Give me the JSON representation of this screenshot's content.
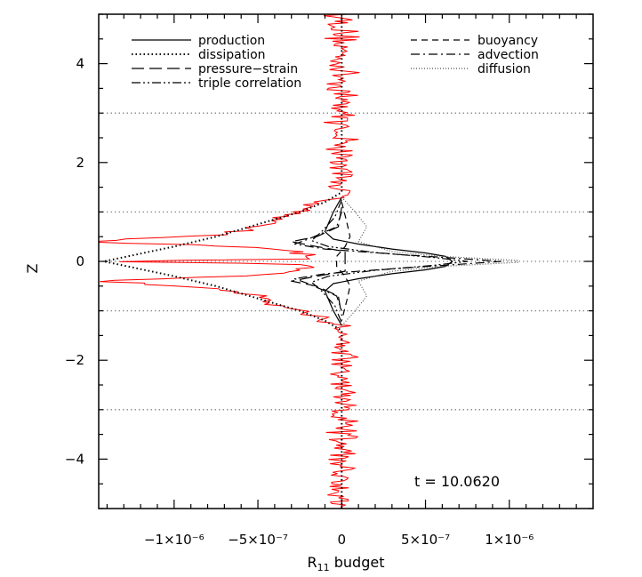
{
  "chart_data": {
    "type": "line",
    "title": "",
    "xlabel_main": "R",
    "xlabel_sub": "11",
    "xlabel_rest": " budget",
    "ylabel": "Z",
    "xlim": [
      -1.45e-06,
      1.5e-06
    ],
    "ylim": [
      -5,
      5
    ],
    "x_ticks": [
      {
        "value": -1e-06,
        "label": "−1×10⁻⁶"
      },
      {
        "value": -5e-07,
        "label": "−5×10⁻⁷"
      },
      {
        "value": 0,
        "label": "0"
      },
      {
        "value": 5e-07,
        "label": "5×10⁻⁷"
      },
      {
        "value": 1e-06,
        "label": "1×10⁻⁶"
      }
    ],
    "y_ticks": [
      {
        "value": -4,
        "label": "−4"
      },
      {
        "value": -2,
        "label": "−2"
      },
      {
        "value": 0,
        "label": "0"
      },
      {
        "value": 2,
        "label": "2"
      },
      {
        "value": 4,
        "label": "4"
      }
    ],
    "reference_lines_z": [
      3,
      1,
      0,
      -1,
      -3
    ],
    "annotation": "t  =  10.0620",
    "legend": [
      {
        "label": "production",
        "style": "solid",
        "column": "left"
      },
      {
        "label": "dissipation",
        "style": "dotted",
        "column": "left"
      },
      {
        "label": "pressure−strain",
        "style": "longdash",
        "column": "left"
      },
      {
        "label": "triple correlation",
        "style": "dashdotdot",
        "column": "left"
      },
      {
        "label": "buoyancy",
        "style": "dashed",
        "column": "right"
      },
      {
        "label": "advection",
        "style": "dashdot",
        "column": "right"
      },
      {
        "label": "diffusion",
        "style": "finedot",
        "column": "right"
      }
    ],
    "series": [
      {
        "name": "dissipation",
        "style": "dotted",
        "color": "#000000",
        "points": [
          [
            0,
            5
          ],
          [
            0,
            1.4
          ],
          [
            -1e-07,
            1.2
          ],
          [
            -2.5e-07,
            1.0
          ],
          [
            -4e-07,
            0.85
          ],
          [
            -5.5e-07,
            0.7
          ],
          [
            -7.5e-07,
            0.5
          ],
          [
            -1e-06,
            0.3
          ],
          [
            -1.25e-06,
            0.12
          ],
          [
            -1.42e-06,
            0
          ],
          [
            -1.25e-06,
            -0.12
          ],
          [
            -1e-06,
            -0.3
          ],
          [
            -7.5e-07,
            -0.5
          ],
          [
            -5.5e-07,
            -0.7
          ],
          [
            -4e-07,
            -0.85
          ],
          [
            -2.5e-07,
            -1.0
          ],
          [
            -1e-07,
            -1.2
          ],
          [
            0,
            -1.4
          ],
          [
            0,
            -5
          ]
        ]
      },
      {
        "name": "production",
        "style": "solid",
        "color": "#000000",
        "points": [
          [
            0,
            1.3
          ],
          [
            -5e-08,
            1.0
          ],
          [
            -1e-07,
            0.6
          ],
          [
            -5e-08,
            0.45
          ],
          [
            1e-07,
            0.35
          ],
          [
            3e-07,
            0.25
          ],
          [
            5e-07,
            0.17
          ],
          [
            6.2e-07,
            0.1
          ],
          [
            6.6e-07,
            0
          ],
          [
            6.2e-07,
            -0.1
          ],
          [
            5e-07,
            -0.17
          ],
          [
            3e-07,
            -0.25
          ],
          [
            1e-07,
            -0.35
          ],
          [
            -5e-08,
            -0.45
          ],
          [
            -1e-07,
            -0.6
          ],
          [
            -5e-08,
            -1.0
          ],
          [
            0,
            -1.3
          ]
        ]
      },
      {
        "name": "pressure-strain",
        "style": "longdash",
        "color": "#000000",
        "points": [
          [
            0,
            1.1
          ],
          [
            -2e-08,
            0.7
          ],
          [
            -1.5e-07,
            0.5
          ],
          [
            -3e-07,
            0.4
          ],
          [
            -1.5e-07,
            0.3
          ],
          [
            2e-08,
            0.2
          ],
          [
            2e-08,
            -0.2
          ],
          [
            -1.5e-07,
            -0.3
          ],
          [
            -3e-07,
            -0.4
          ],
          [
            -1.5e-07,
            -0.5
          ],
          [
            -2e-08,
            -0.7
          ],
          [
            0,
            -1.1
          ]
        ]
      },
      {
        "name": "buoyancy",
        "style": "dashed",
        "color": "#000000",
        "points": [
          [
            0,
            1.2
          ],
          [
            3e-08,
            0.8
          ],
          [
            5e-08,
            0.5
          ],
          [
            2e-08,
            0.3
          ],
          [
            -3e-08,
            0.1
          ],
          [
            -3e-08,
            -0.1
          ],
          [
            2e-08,
            -0.3
          ],
          [
            5e-08,
            -0.5
          ],
          [
            3e-08,
            -0.8
          ],
          [
            0,
            -1.2
          ]
        ]
      },
      {
        "name": "advection",
        "style": "dashdot",
        "color": "#000000",
        "points": [
          [
            0,
            1.0
          ],
          [
            -3e-08,
            0.7
          ],
          [
            -2e-07,
            0.45
          ],
          [
            -2.8e-07,
            0.35
          ],
          [
            -1e-07,
            0.25
          ],
          [
            3e-07,
            0.15
          ],
          [
            7e-07,
            0.06
          ],
          [
            9.5e-07,
            0
          ],
          [
            7e-07,
            -0.06
          ],
          [
            3e-07,
            -0.15
          ],
          [
            -1e-07,
            -0.25
          ],
          [
            -2.8e-07,
            -0.35
          ],
          [
            -2e-07,
            -0.45
          ],
          [
            -3e-08,
            -0.7
          ],
          [
            0,
            -1.0
          ]
        ]
      },
      {
        "name": "triple correlation",
        "style": "dashdotdot",
        "color": "#000000",
        "points": [
          [
            0,
            1.25
          ],
          [
            -4e-08,
            0.9
          ],
          [
            -1.2e-07,
            0.6
          ],
          [
            -1.8e-07,
            0.42
          ],
          [
            -8e-08,
            0.3
          ],
          [
            2e-07,
            0.18
          ],
          [
            5.5e-07,
            0.08
          ],
          [
            7.5e-07,
            0
          ],
          [
            5.5e-07,
            -0.08
          ],
          [
            2e-07,
            -0.18
          ],
          [
            -8e-08,
            -0.3
          ],
          [
            -1.8e-07,
            -0.42
          ],
          [
            -1.2e-07,
            -0.6
          ],
          [
            -4e-08,
            -0.9
          ],
          [
            0,
            -1.25
          ]
        ]
      },
      {
        "name": "diffusion",
        "style": "finedot",
        "color": "#555555",
        "points": [
          [
            0,
            1.3
          ],
          [
            8e-08,
            1.0
          ],
          [
            1.5e-07,
            0.7
          ],
          [
            1e-07,
            0.4
          ],
          [
            3e-07,
            0.2
          ],
          [
            6e-07,
            0.1
          ],
          [
            1.05e-06,
            0.02
          ],
          [
            1.05e-06,
            -0.02
          ],
          [
            6e-07,
            -0.1
          ],
          [
            3e-07,
            -0.2
          ],
          [
            1e-07,
            -0.4
          ],
          [
            1.5e-07,
            -0.7
          ],
          [
            8e-08,
            -1.0
          ],
          [
            0,
            -1.3
          ]
        ]
      },
      {
        "name": "noisy budget",
        "style": "solid",
        "color": "#ff0000",
        "noise_amplitude": 1.2e-07,
        "envelope": [
          [
            5,
            0
          ],
          [
            1.3,
            0
          ],
          [
            1.05,
            -2.2e-07
          ],
          [
            0.9,
            -3.3e-07
          ],
          [
            0.7,
            -5e-07
          ],
          [
            0.55,
            -7.5e-07
          ],
          [
            0.45,
            -1.2e-06
          ],
          [
            0.4,
            -1.48e-06
          ],
          [
            0.32,
            -8e-07
          ],
          [
            0.25,
            -4e-07
          ],
          [
            0.12,
            -1.5e-07
          ],
          [
            0.05,
            -3e-07
          ],
          [
            0,
            -1.4e-06
          ],
          [
            -0.05,
            -3e-07
          ],
          [
            -0.12,
            -1.5e-07
          ],
          [
            -0.25,
            -4e-07
          ],
          [
            -0.32,
            -8e-07
          ],
          [
            -0.4,
            -1.48e-06
          ],
          [
            -0.45,
            -1.2e-06
          ],
          [
            -0.55,
            -7.5e-07
          ],
          [
            -0.7,
            -5e-07
          ],
          [
            -0.9,
            -3.3e-07
          ],
          [
            -1.05,
            -2.2e-07
          ],
          [
            -1.3,
            0
          ],
          [
            -5,
            0
          ]
        ]
      }
    ]
  }
}
